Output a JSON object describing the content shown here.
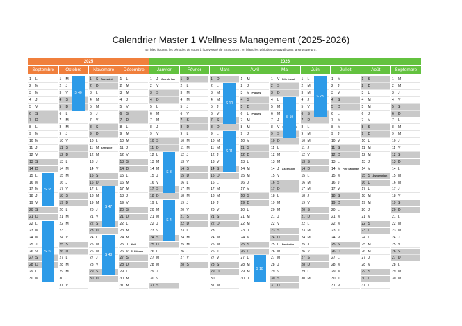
{
  "title": "Calendrier Master 1 Wellness Management (2025-2026)",
  "subtitle": "En bleu figurent les périodes de cours à l'Université de Strasbourg ; en blanc les périodes de travail dans la structure pro.",
  "years": [
    "2025",
    "2026"
  ],
  "colors": {
    "y2025": "#f07f3c",
    "y2026": "#63c23f",
    "course_block": "#2d9be8",
    "weekend": "#c9c9c9"
  },
  "months": [
    {
      "name": "Septembre",
      "year": "2025",
      "days": 30,
      "start": 1
    },
    {
      "name": "Octobre",
      "year": "2025",
      "days": 31,
      "start": 3
    },
    {
      "name": "Novembre",
      "year": "2025",
      "days": 30,
      "start": 6
    },
    {
      "name": "Décembre",
      "year": "2025",
      "days": 31,
      "start": 1
    },
    {
      "name": "Janvier",
      "year": "2026",
      "days": 31,
      "start": 4
    },
    {
      "name": "Février",
      "year": "2026",
      "days": 28,
      "start": 0
    },
    {
      "name": "Mars",
      "year": "2026",
      "days": 31,
      "start": 0
    },
    {
      "name": "Avril",
      "year": "2026",
      "days": 30,
      "start": 3
    },
    {
      "name": "Mai",
      "year": "2026",
      "days": 31,
      "start": 5
    },
    {
      "name": "Juin",
      "year": "2026",
      "days": 30,
      "start": 1
    },
    {
      "name": "Juillet",
      "year": "2026",
      "days": 31,
      "start": 3
    },
    {
      "name": "Août",
      "year": "2026",
      "days": 31,
      "start": 6
    },
    {
      "name": "Septembre",
      "year": "2026",
      "days": 30,
      "start": 2
    }
  ],
  "weekday_letters": [
    "D",
    "L",
    "M",
    "M",
    "J",
    "V",
    "S"
  ],
  "notes": [
    {
      "month": 2,
      "day": 1,
      "text": "Toussaint"
    },
    {
      "month": 2,
      "day": 11,
      "text": "Armistice"
    },
    {
      "month": 3,
      "day": 25,
      "text": "Noël"
    },
    {
      "month": 3,
      "day": 26,
      "text": "St Etienne"
    },
    {
      "month": 4,
      "day": 1,
      "text": "Jour de l'an"
    },
    {
      "month": 7,
      "day": 3,
      "text": "Pâques"
    },
    {
      "month": 7,
      "day": 6,
      "text": "Pâques"
    },
    {
      "month": 8,
      "day": 1,
      "text": "Fête travail"
    },
    {
      "month": 8,
      "day": 8,
      "text": "Victoire 1945"
    },
    {
      "month": 8,
      "day": 14,
      "text": "Ascension"
    },
    {
      "month": 8,
      "day": 25,
      "text": "Pentecôte"
    },
    {
      "month": 10,
      "day": 14,
      "text": "Fête nationale"
    },
    {
      "month": 11,
      "day": 15,
      "text": "Assomption"
    }
  ],
  "course_blocks": [
    {
      "month": 1,
      "from": 1,
      "to": 5,
      "label": "S 40"
    },
    {
      "month": 2,
      "from": 17,
      "to": 22,
      "label": "S 47"
    },
    {
      "month": 0,
      "from": 15,
      "to": 19,
      "label": "S 38"
    },
    {
      "month": 0,
      "from": 22,
      "to": 30,
      "label": "S 39"
    },
    {
      "month": 2,
      "from": 24,
      "to": 29,
      "label": "S 48"
    },
    {
      "month": 4,
      "from": 12,
      "to": 17,
      "label": "S 3"
    },
    {
      "month": 4,
      "from": 19,
      "to": 24,
      "label": "S 4"
    },
    {
      "month": 6,
      "from": 2,
      "to": 7,
      "label": "S 10"
    },
    {
      "month": 6,
      "from": 9,
      "to": 14,
      "label": "S 11"
    },
    {
      "month": 8,
      "from": 4,
      "to": 9,
      "label": "S 19"
    },
    {
      "month": 9,
      "from": 1,
      "to": 6,
      "label": "S 23"
    },
    {
      "month": 7,
      "from": 27,
      "to": 30,
      "label": "S 18"
    }
  ]
}
